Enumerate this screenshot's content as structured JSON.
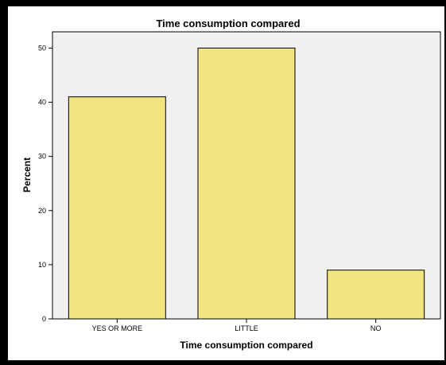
{
  "chart_data": {
    "type": "bar",
    "title": "Time consumption compared",
    "xlabel": "Time consumption compared",
    "ylabel": "Percent",
    "categories": [
      "YES OR MORE",
      "LITTLE",
      "NO"
    ],
    "values": [
      41,
      50,
      9
    ],
    "ylim": [
      0,
      53
    ],
    "yticks": [
      0,
      10,
      20,
      30,
      40,
      50
    ],
    "grid": false,
    "legend": "none",
    "bar_color": "#f0e47e",
    "bar_stroke": "#000000",
    "plot_background": "#f0f0f0"
  }
}
